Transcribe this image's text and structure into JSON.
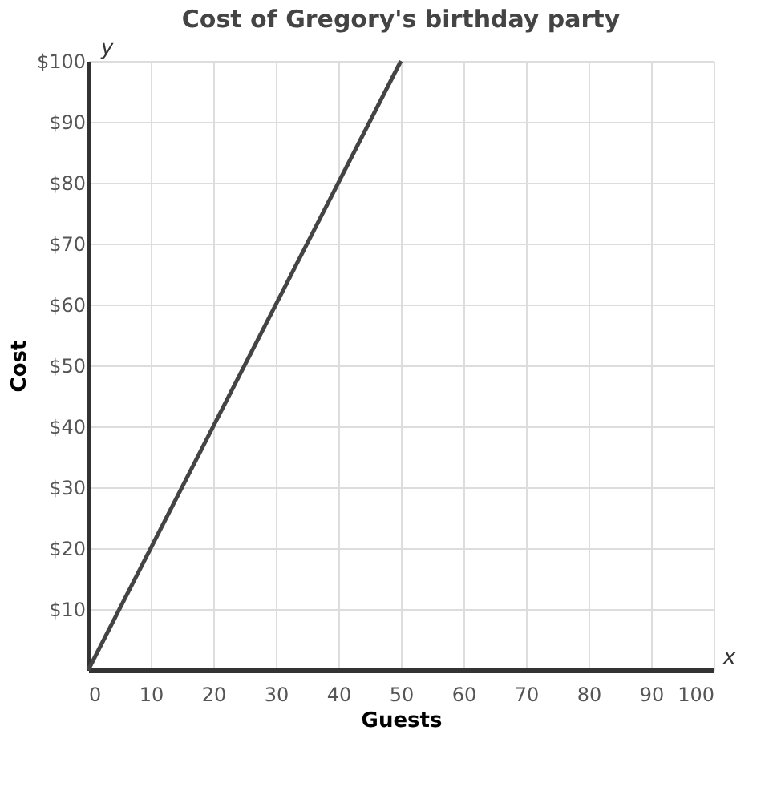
{
  "chart_data": {
    "type": "line",
    "title": "Cost of Gregory's birthday party",
    "xlabel": "Guests",
    "ylabel": "Cost",
    "x": [
      0,
      50
    ],
    "series": [
      {
        "color": "#444444",
        "values": [
          0,
          100
        ]
      }
    ],
    "xlim": [
      0,
      100
    ],
    "xticks": [
      0,
      10,
      20,
      30,
      40,
      50,
      60,
      70,
      80,
      90,
      100
    ],
    "ylim": [
      0,
      100
    ],
    "yticks": [
      {
        "value": 0,
        "label": null
      },
      {
        "value": 10,
        "label": "$10"
      },
      {
        "value": 20,
        "label": "$20"
      },
      {
        "value": 30,
        "label": "$30"
      },
      {
        "value": 40,
        "label": "$40"
      },
      {
        "value": 50,
        "label": "$50"
      },
      {
        "value": 60,
        "label": "$60"
      },
      {
        "value": 70,
        "label": "$70"
      },
      {
        "value": 80,
        "label": "$80"
      },
      {
        "value": 90,
        "label": "$90"
      },
      {
        "value": 100,
        "label": "$100"
      }
    ],
    "grid": true,
    "marker": "none",
    "line_style": "solid",
    "annotations": [
      "x",
      "y"
    ]
  }
}
